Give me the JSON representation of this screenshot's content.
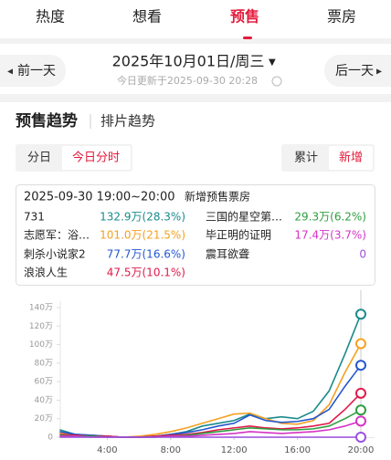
{
  "tabs": [
    "热度",
    "想看",
    "预售",
    "票房"
  ],
  "date": {
    "prev": "前一天",
    "current": "2025年10月01日/周三",
    "updated": "今日更新于2025-09-30  20:28",
    "next": "后一天"
  },
  "section_tabs": [
    "预售趋势",
    "排片趋势"
  ],
  "granularity": [
    "分日",
    "今日分时"
  ],
  "mode": [
    "累计",
    "新增"
  ],
  "tooltip": {
    "time": "2025-09-30  19:00~20:00",
    "metric": "新增预售票房",
    "values": [
      "132.9万(28.3%)",
      "101.0万(21.5%)",
      "77.7万(16.6%)",
      "47.5万(10.1%)",
      "29.3万(6.2%)",
      "17.4万(3.7%)",
      "0"
    ]
  },
  "chart_data": {
    "type": "line",
    "x": [
      1,
      2,
      3,
      4,
      5,
      6,
      7,
      8,
      9,
      10,
      11,
      12,
      13,
      14,
      15,
      16,
      17,
      18,
      19,
      20
    ],
    "xlim": [
      0,
      20
    ],
    "xticks": [
      {
        "value": 4,
        "label": "4:00"
      },
      {
        "value": 8,
        "label": "8:00"
      },
      {
        "value": 12,
        "label": "12:00"
      },
      {
        "value": 16,
        "label": "16:00"
      },
      {
        "value": 20,
        "label": "20:00"
      }
    ],
    "ylim": [
      0,
      140
    ],
    "yticks": [
      0,
      {
        "value": 20,
        "label": "20万"
      },
      {
        "value": 40,
        "label": "40万"
      },
      {
        "value": 60,
        "label": "60万"
      },
      {
        "value": 80,
        "label": "80万"
      },
      {
        "value": 100,
        "label": "100万"
      },
      {
        "value": 120,
        "label": "120万"
      },
      {
        "value": 140,
        "label": "140万"
      }
    ],
    "series": [
      {
        "name": "731",
        "color": "#1b8a8c",
        "values": [
          8,
          3,
          2,
          1,
          0,
          0,
          1,
          3,
          6,
          12,
          15,
          18,
          25,
          20,
          22,
          20,
          28,
          50,
          90,
          132.9
        ]
      },
      {
        "name": "志愿军：浴…",
        "color": "#f5a020",
        "values": [
          5,
          2,
          2,
          1,
          0,
          1,
          3,
          6,
          10,
          15,
          20,
          25,
          26,
          20,
          15,
          14,
          18,
          35,
          70,
          101.0
        ]
      },
      {
        "name": "刺杀小说家2",
        "color": "#2456d0",
        "values": [
          6,
          3,
          2,
          1,
          0,
          0,
          1,
          3,
          5,
          8,
          12,
          15,
          24,
          18,
          16,
          17,
          20,
          30,
          55,
          77.7
        ]
      },
      {
        "name": "浪浪人生",
        "color": "#e0194a",
        "values": [
          3,
          2,
          1,
          1,
          0,
          0,
          1,
          2,
          3,
          5,
          8,
          10,
          12,
          10,
          9,
          10,
          12,
          15,
          30,
          47.5
        ]
      },
      {
        "name": "三国的星空第…",
        "color": "#2e9e3e",
        "values": [
          2,
          1,
          1,
          0,
          0,
          0,
          0,
          1,
          2,
          4,
          6,
          8,
          10,
          9,
          8,
          8,
          9,
          12,
          20,
          29.3
        ]
      },
      {
        "name": "毕正明的证明",
        "color": "#d633c6",
        "values": [
          1,
          1,
          0,
          0,
          0,
          0,
          0,
          1,
          1,
          2,
          3,
          4,
          6,
          5,
          4,
          5,
          6,
          8,
          12,
          17.4
        ]
      },
      {
        "name": "震耳欲聋",
        "color": "#9b51e0",
        "values": [
          0,
          0,
          0,
          0,
          0,
          0,
          0,
          0,
          0,
          0,
          0,
          0,
          0,
          0,
          0,
          0,
          0,
          0,
          0,
          0
        ]
      }
    ]
  }
}
